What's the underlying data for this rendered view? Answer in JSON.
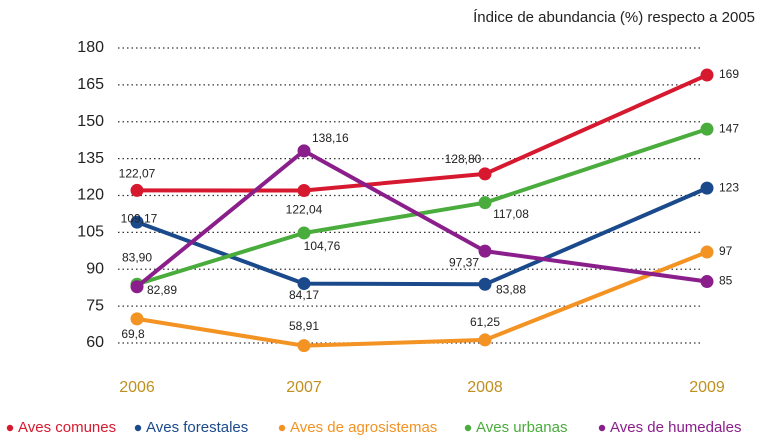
{
  "chart_data": {
    "type": "line",
    "title": "Índice  de abundancia (%) respecto a 2005",
    "categories": [
      "2006",
      "2007",
      "2008",
      "2009"
    ],
    "series": [
      {
        "name": "Aves comunes",
        "color": "#d7192f",
        "values": [
          122.07,
          122.04,
          128.8,
          169
        ],
        "value_labels": [
          "122,07",
          "122,04",
          "128,80",
          "169"
        ]
      },
      {
        "name": "Aves forestales",
        "color": "#1b4a8c",
        "values": [
          109.17,
          84.17,
          83.88,
          123
        ],
        "value_labels": [
          "109,17",
          "84,17",
          "83,88",
          "123"
        ]
      },
      {
        "name": "Aves de agrosistemas",
        "color": "#f39323",
        "values": [
          69.8,
          58.91,
          61.25,
          97
        ],
        "value_labels": [
          "69,8",
          "58,91",
          "61,25",
          "97"
        ]
      },
      {
        "name": "Aves urbanas",
        "color": "#4aac3c",
        "values": [
          83.9,
          104.76,
          117.08,
          147
        ],
        "value_labels": [
          "83,90",
          "104,76",
          "117,08",
          "147"
        ]
      },
      {
        "name": "Aves de humedales",
        "color": "#8a1f8c",
        "values": [
          82.89,
          138.16,
          97.37,
          85
        ],
        "value_labels": [
          "82,89",
          "138,16",
          "97,37",
          "85"
        ]
      }
    ],
    "ylim": [
      60,
      180
    ],
    "yticks": [
      60,
      75,
      90,
      105,
      120,
      135,
      150,
      165,
      180
    ],
    "grid": true
  }
}
